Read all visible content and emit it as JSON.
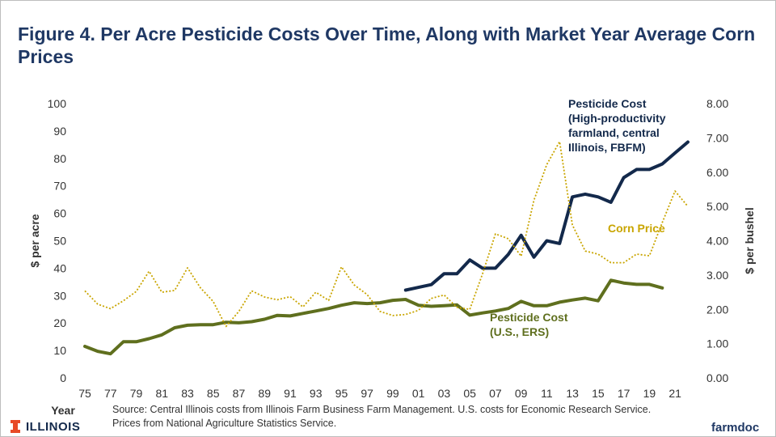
{
  "page": {
    "title": "Figure 4.  Per Acre Pesticide Costs Over Time, Along with Market Year Average Corn Prices",
    "source": "Source: Central Illinois costs from Illinois Farm Business Farm Management. U.S. costs for Economic Research Service.  Prices from National Agriculture Statistics Service.",
    "logo_left": "ILLINOIS",
    "logo_right": "farmdoc"
  },
  "colors": {
    "navy": "#13294b",
    "olive": "#5f6f1e",
    "gold": "#c9a500",
    "title": "#1f3864",
    "illinois_orange": "#e84a27"
  },
  "chart_data": {
    "type": "line",
    "title": "Figure 4.  Per Acre Pesticide Costs Over Time, Along with Market Year Average Corn Prices",
    "xlabel": "Year",
    "ylabel": "$ per acre",
    "y2label": "$ per bushel",
    "xlim": [
      1975,
      2022
    ],
    "ylim": [
      0,
      100
    ],
    "y2lim": [
      0,
      8
    ],
    "grid": false,
    "yticks": [
      "0",
      "10",
      "20",
      "30",
      "40",
      "50",
      "60",
      "70",
      "80",
      "90",
      "100"
    ],
    "y2ticks": [
      "0.00",
      "1.00",
      "2.00",
      "3.00",
      "4.00",
      "5.00",
      "6.00",
      "7.00",
      "8.00"
    ],
    "xticks": [
      {
        "x": 1975,
        "label": "75"
      },
      {
        "x": 1977,
        "label": "77"
      },
      {
        "x": 1979,
        "label": "79"
      },
      {
        "x": 1981,
        "label": "81"
      },
      {
        "x": 1983,
        "label": "83"
      },
      {
        "x": 1985,
        "label": "85"
      },
      {
        "x": 1987,
        "label": "87"
      },
      {
        "x": 1989,
        "label": "89"
      },
      {
        "x": 1991,
        "label": "91"
      },
      {
        "x": 1993,
        "label": "93"
      },
      {
        "x": 1995,
        "label": "95"
      },
      {
        "x": 1997,
        "label": "97"
      },
      {
        "x": 1999,
        "label": "99"
      },
      {
        "x": 2001,
        "label": "01"
      },
      {
        "x": 2003,
        "label": "03"
      },
      {
        "x": 2005,
        "label": "05"
      },
      {
        "x": 2007,
        "label": "07"
      },
      {
        "x": 2009,
        "label": "09"
      },
      {
        "x": 2011,
        "label": "11"
      },
      {
        "x": 2013,
        "label": "13"
      },
      {
        "x": 2015,
        "label": "15"
      },
      {
        "x": 2017,
        "label": "17"
      },
      {
        "x": 2019,
        "label": "19"
      },
      {
        "x": 2021,
        "label": "21"
      }
    ],
    "series": [
      {
        "name": "Pesticide Cost (High-productivity farmland, central Illinois, FBFM)",
        "label_lines": [
          "Pesticide Cost",
          "(High-productivity",
          "farmland, central",
          "Illinois, FBFM)"
        ],
        "axis": "left",
        "color": "#13294b",
        "style": "solid",
        "x": [
          2000,
          2001,
          2002,
          2003,
          2004,
          2005,
          2006,
          2007,
          2008,
          2009,
          2010,
          2011,
          2012,
          2013,
          2014,
          2015,
          2016,
          2017,
          2018,
          2019,
          2020,
          2021,
          2022
        ],
        "values": [
          32,
          33,
          34,
          38,
          38,
          43,
          40,
          40,
          45,
          52,
          44,
          50,
          49,
          66,
          67,
          66,
          64,
          73,
          76,
          76,
          78,
          82,
          86
        ]
      },
      {
        "name": "Pesticide Cost (U.S., ERS)",
        "label_lines": [
          "Pesticide Cost",
          "(U.S., ERS)"
        ],
        "axis": "left",
        "color": "#5f6f1e",
        "style": "solid",
        "x": [
          1975,
          1976,
          1977,
          1978,
          1979,
          1980,
          1981,
          1982,
          1983,
          1984,
          1985,
          1986,
          1987,
          1988,
          1989,
          1990,
          1991,
          1992,
          1993,
          1994,
          1995,
          1996,
          1997,
          1998,
          1999,
          2000,
          2001,
          2002,
          2003,
          2004,
          2005,
          2006,
          2007,
          2008,
          2009,
          2010,
          2011,
          2012,
          2013,
          2014,
          2015,
          2016,
          2017,
          2018,
          2019,
          2020
        ],
        "values": [
          11.5,
          9.7,
          8.8,
          13.2,
          13.2,
          14.3,
          15.7,
          18.3,
          19.2,
          19.4,
          19.4,
          20.3,
          20.1,
          20.5,
          21.4,
          22.8,
          22.6,
          23.5,
          24.4,
          25.3,
          26.5,
          27.4,
          27.1,
          27.4,
          28.3,
          28.6,
          26.5,
          26.1,
          26.3,
          26.6,
          22.9,
          23.7,
          24.4,
          25.3,
          27.9,
          26.3,
          26.3,
          27.6,
          28.4,
          29.1,
          28.1,
          35.6,
          34.6,
          34.1,
          34.1,
          32.8
        ]
      },
      {
        "name": "Corn Price",
        "label_lines": [
          "Corn Price"
        ],
        "axis": "right",
        "color": "#c9a500",
        "style": "dotted",
        "x": [
          1975,
          1976,
          1977,
          1978,
          1979,
          1980,
          1981,
          1982,
          1983,
          1984,
          1985,
          1986,
          1987,
          1988,
          1989,
          1990,
          1991,
          1992,
          1993,
          1994,
          1995,
          1996,
          1997,
          1998,
          1999,
          2000,
          2001,
          2002,
          2003,
          2004,
          2005,
          2006,
          2007,
          2008,
          2009,
          2010,
          2011,
          2012,
          2013,
          2014,
          2015,
          2016,
          2017,
          2018,
          2019,
          2020,
          2021,
          2022
        ],
        "values": [
          2.54,
          2.15,
          2.02,
          2.25,
          2.52,
          3.11,
          2.5,
          2.55,
          3.21,
          2.63,
          2.23,
          1.5,
          1.94,
          2.54,
          2.36,
          2.28,
          2.37,
          2.07,
          2.5,
          2.26,
          3.24,
          2.71,
          2.43,
          1.94,
          1.82,
          1.85,
          1.97,
          2.32,
          2.42,
          2.06,
          2.0,
          3.04,
          4.2,
          4.06,
          3.55,
          5.18,
          6.22,
          6.89,
          4.46,
          3.7,
          3.61,
          3.36,
          3.36,
          3.61,
          3.56,
          4.53,
          5.45,
          5.0
        ]
      }
    ]
  }
}
